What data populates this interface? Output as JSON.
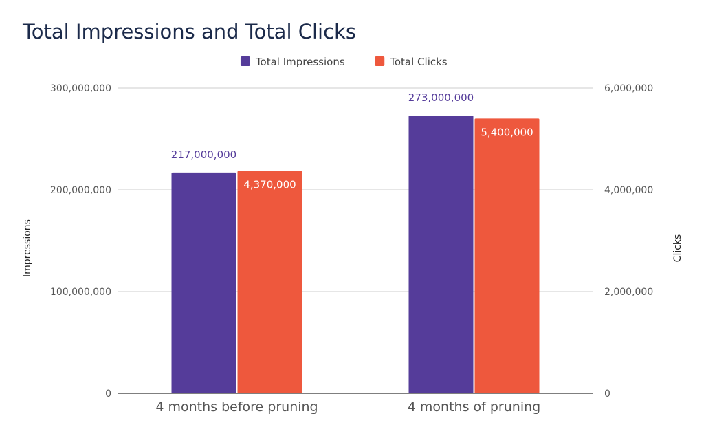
{
  "chart_data": {
    "type": "bar",
    "title": "Total Impressions and Total Clicks",
    "categories": [
      "4 months before pruning",
      "4 months of pruning"
    ],
    "series": [
      {
        "name": "Total Impressions",
        "axis": "left",
        "color": "#553C9A",
        "values": [
          217000000,
          273000000
        ],
        "data_labels": [
          "217,000,000",
          "273,000,000"
        ]
      },
      {
        "name": "Total Clicks",
        "axis": "right",
        "color": "#EE583D",
        "values": [
          4370000,
          5400000
        ],
        "data_labels": [
          "4,370,000",
          "5,400,000"
        ]
      }
    ],
    "y_left": {
      "label": "Impressions",
      "ylim": [
        0,
        300000000
      ],
      "ticks": [
        0,
        100000000,
        200000000,
        300000000
      ],
      "tick_labels": [
        "0",
        "100,000,000",
        "200,000,000",
        "300,000,000"
      ]
    },
    "y_right": {
      "label": "Clicks",
      "ylim": [
        0,
        6000000
      ],
      "ticks": [
        0,
        2000000,
        4000000,
        6000000
      ],
      "tick_labels": [
        "0",
        "2,000,000",
        "4,000,000",
        "6,000,000"
      ]
    },
    "grid": true,
    "legend_position": "top-center",
    "colors": {
      "title": "#1B2A4A",
      "axis_text": "#555555",
      "grid": "#CCCCCC",
      "baseline": "#333333",
      "impressions_label": "#553C9A",
      "clicks_label": "#FFFFFF"
    }
  }
}
